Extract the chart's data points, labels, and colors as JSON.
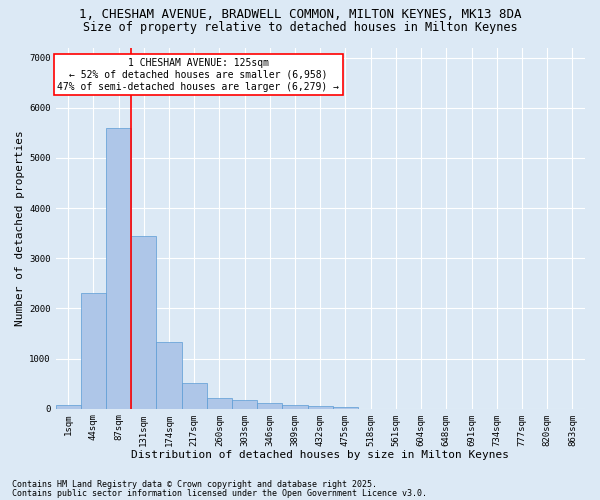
{
  "title_line1": "1, CHESHAM AVENUE, BRADWELL COMMON, MILTON KEYNES, MK13 8DA",
  "title_line2": "Size of property relative to detached houses in Milton Keynes",
  "xlabel": "Distribution of detached houses by size in Milton Keynes",
  "ylabel": "Number of detached properties",
  "categories": [
    "1sqm",
    "44sqm",
    "87sqm",
    "131sqm",
    "174sqm",
    "217sqm",
    "260sqm",
    "303sqm",
    "346sqm",
    "389sqm",
    "432sqm",
    "475sqm",
    "518sqm",
    "561sqm",
    "604sqm",
    "648sqm",
    "691sqm",
    "734sqm",
    "777sqm",
    "820sqm",
    "863sqm"
  ],
  "values": [
    80,
    2300,
    5600,
    3450,
    1330,
    520,
    205,
    180,
    110,
    80,
    50,
    30,
    0,
    0,
    0,
    0,
    0,
    0,
    0,
    0,
    0
  ],
  "bar_color": "#aec6e8",
  "bar_edge_color": "#5b9bd5",
  "annotation_text_line1": "1 CHESHAM AVENUE: 125sqm",
  "annotation_text_line2": "← 52% of detached houses are smaller (6,958)",
  "annotation_text_line3": "47% of semi-detached houses are larger (6,279) →",
  "annotation_box_color": "#ffffff",
  "annotation_box_edge_color": "red",
  "vline_color": "red",
  "vline_x": 2.5,
  "ylim": [
    0,
    7200
  ],
  "yticks": [
    0,
    1000,
    2000,
    3000,
    4000,
    5000,
    6000,
    7000
  ],
  "bg_color": "#dce9f5",
  "plot_bg_color": "#dce9f5",
  "grid_color": "#ffffff",
  "footer_line1": "Contains HM Land Registry data © Crown copyright and database right 2025.",
  "footer_line2": "Contains public sector information licensed under the Open Government Licence v3.0.",
  "title_fontsize": 9,
  "subtitle_fontsize": 8.5,
  "tick_fontsize": 6.5,
  "label_fontsize": 8,
  "annot_fontsize": 7,
  "footer_fontsize": 6
}
